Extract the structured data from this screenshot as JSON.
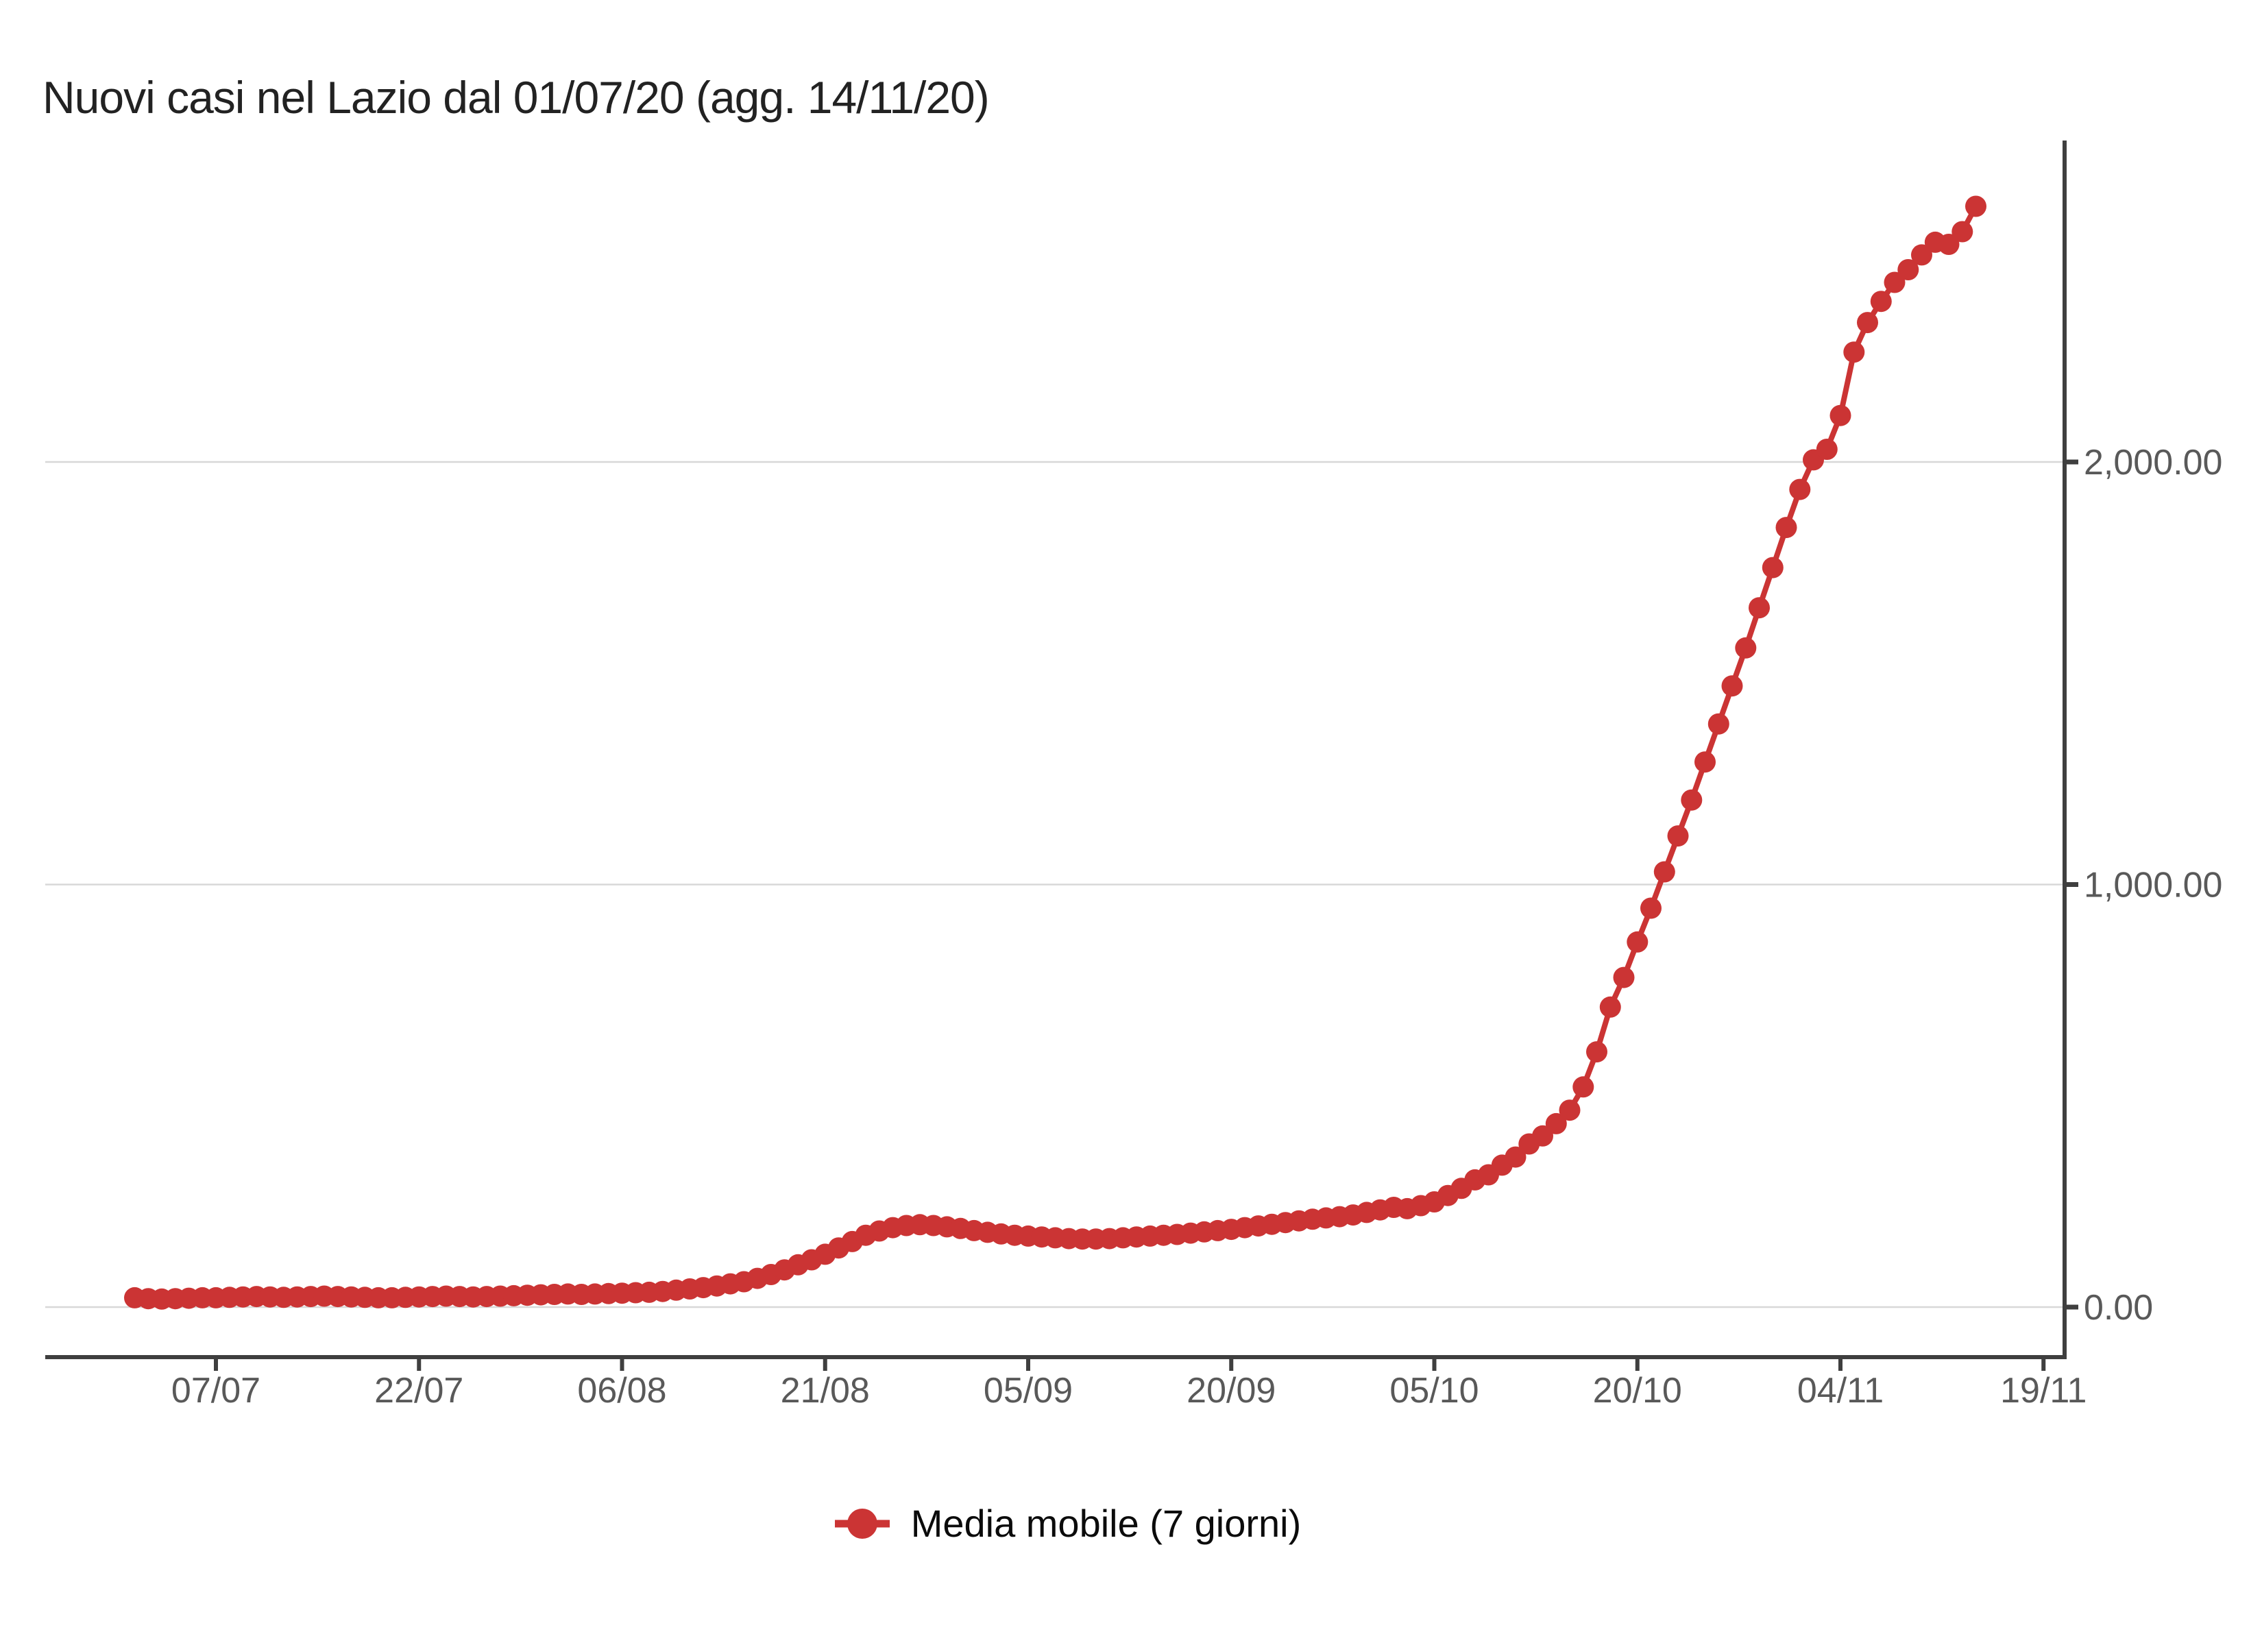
{
  "title": "Nuovi casi nel Lazio dal 01/07/20 (agg. 14/11/20)",
  "legend": {
    "label": "Media mobile (7 giorni)"
  },
  "colors": {
    "series": "#cb3434",
    "title_text": "#222222",
    "tick_label": "#595959",
    "axis_line": "#3f3f3f",
    "gridline": "#d8d8d8",
    "legend_text": "#0b0b0b",
    "background": "#ffffff"
  },
  "chart_data": {
    "type": "line",
    "title": "Nuovi casi nel Lazio dal 01/07/20 (agg. 14/11/20)",
    "xlabel": "",
    "ylabel": "",
    "grid": "horizontal",
    "legend_position": "bottom-center",
    "ylim": [
      0,
      2760
    ],
    "y_ticks": [
      {
        "value": 0,
        "label": "0.00"
      },
      {
        "value": 1000,
        "label": "1,000.00"
      },
      {
        "value": 2000,
        "label": "2,000.00"
      }
    ],
    "x_ticks": [
      {
        "day": 6,
        "label": "07/07"
      },
      {
        "day": 21,
        "label": "22/07"
      },
      {
        "day": 36,
        "label": "06/08"
      },
      {
        "day": 51,
        "label": "21/08"
      },
      {
        "day": 66,
        "label": "05/09"
      },
      {
        "day": 81,
        "label": "20/09"
      },
      {
        "day": 96,
        "label": "05/10"
      },
      {
        "day": 111,
        "label": "20/10"
      },
      {
        "day": 126,
        "label": "04/11"
      },
      {
        "day": 141,
        "label": "19/11"
      }
    ],
    "series": [
      {
        "name": "Media mobile (7 giorni)",
        "color": "#cb3434",
        "marker": "circle",
        "start_date": "01/07/20",
        "end_date": "14/11/20",
        "frequency": "daily",
        "values": [
          22,
          20,
          19,
          20,
          21,
          22,
          22,
          23,
          24,
          25,
          24,
          23,
          24,
          25,
          26,
          25,
          24,
          23,
          22,
          22,
          23,
          24,
          25,
          26,
          25,
          24,
          25,
          26,
          27,
          28,
          29,
          30,
          31,
          30,
          31,
          32,
          33,
          34,
          35,
          37,
          40,
          43,
          46,
          50,
          55,
          60,
          68,
          77,
          88,
          100,
          112,
          125,
          140,
          155,
          170,
          180,
          188,
          193,
          195,
          193,
          190,
          186,
          181,
          177,
          173,
          170,
          168,
          166,
          164,
          162,
          161,
          161,
          162,
          164,
          166,
          168,
          170,
          172,
          175,
          178,
          181,
          184,
          188,
          192,
          196,
          200,
          204,
          208,
          211,
          214,
          218,
          224,
          230,
          236,
          233,
          240,
          249,
          264,
          281,
          301,
          313,
          336,
          355,
          386,
          405,
          434,
          466,
          521,
          604,
          710,
          780,
          864,
          944,
          1030,
          1115,
          1200,
          1290,
          1380,
          1470,
          1560,
          1655,
          1750,
          1845,
          1935,
          2005,
          2030,
          2110,
          2260,
          2330,
          2380,
          2425,
          2455,
          2490,
          2520,
          2515,
          2545,
          2605
        ]
      }
    ]
  }
}
